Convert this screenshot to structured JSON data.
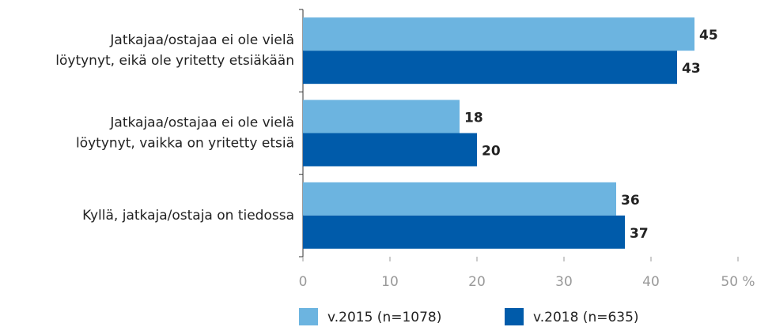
{
  "chart_data": {
    "type": "bar",
    "orientation": "horizontal",
    "categories": [
      "Jatkajaa/ostajaa ei ole vielä\nlöytynyt, eikä ole yritetty etsiäkään",
      "Jatkajaa/ostajaa ei ole vielä\nlöytynyt, vaikka on yritetty etsiä",
      "Kyllä, jatkaja/ostaja on tiedossa"
    ],
    "series": [
      {
        "name": "v.2015 (n=1078)",
        "color": "#6cb4e0",
        "values": [
          45,
          18,
          36
        ]
      },
      {
        "name": "v.2018 (n=635)",
        "color": "#005baa",
        "values": [
          43,
          20,
          37
        ]
      }
    ],
    "xlim": [
      0,
      50
    ],
    "xticks": [
      0,
      10,
      20,
      30,
      40,
      {
        "value": 50,
        "label": "50 %"
      }
    ],
    "grid": false,
    "legend": "bottom"
  }
}
